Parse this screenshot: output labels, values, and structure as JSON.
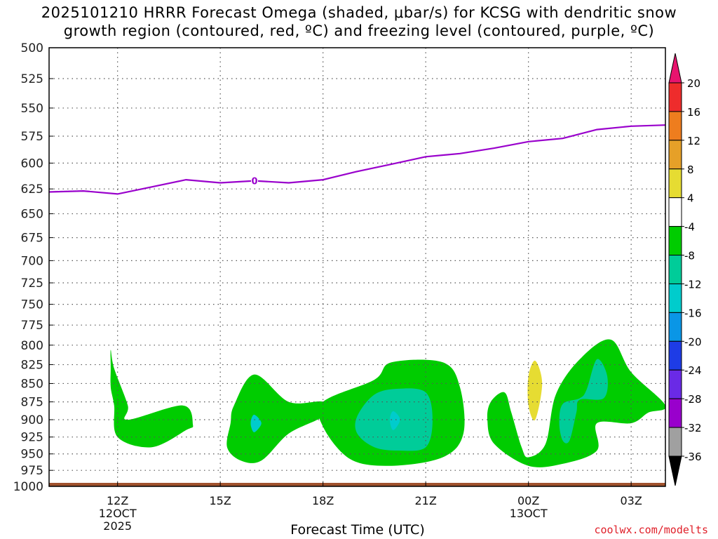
{
  "title_line1": "2025101210 HRRR Forecast Omega (shaded, μbar/s) for KCSG with dendritic snow",
  "title_line2": "growth region (contoured, red, ºC) and freezing level (contoured, purple, ºC)",
  "credit": "coolwx.com/modelts",
  "chart_data": {
    "type": "contour",
    "xlabel": "Forecast Time (UTC)",
    "ylabel": "",
    "x_range_hours": [
      10,
      28
    ],
    "y_range_hpa": [
      500,
      1000
    ],
    "y_scale": "log-pressure",
    "grid": true,
    "x_ticks": [
      {
        "hour": 12,
        "label": "12Z",
        "sub1": "12OCT",
        "sub2": "2025"
      },
      {
        "hour": 15,
        "label": "15Z",
        "sub1": "",
        "sub2": ""
      },
      {
        "hour": 18,
        "label": "18Z",
        "sub1": "",
        "sub2": ""
      },
      {
        "hour": 21,
        "label": "21Z",
        "sub1": "",
        "sub2": ""
      },
      {
        "hour": 24,
        "label": "00Z",
        "sub1": "13OCT",
        "sub2": ""
      },
      {
        "hour": 27,
        "label": "03Z",
        "sub1": "",
        "sub2": ""
      }
    ],
    "y_ticks": [
      500,
      525,
      550,
      575,
      600,
      625,
      650,
      675,
      700,
      725,
      750,
      775,
      800,
      825,
      850,
      875,
      900,
      925,
      950,
      975,
      1000
    ],
    "freezing_level": {
      "label": "0",
      "color": "#9900cc",
      "points": [
        [
          10,
          628
        ],
        [
          11,
          627
        ],
        [
          12,
          630
        ],
        [
          13,
          623
        ],
        [
          14,
          616
        ],
        [
          15,
          619
        ],
        [
          16,
          617
        ],
        [
          17,
          619
        ],
        [
          18,
          616
        ],
        [
          19,
          608
        ],
        [
          20,
          601
        ],
        [
          21,
          594
        ],
        [
          22,
          591
        ],
        [
          23,
          586
        ],
        [
          24,
          580
        ],
        [
          25,
          577
        ],
        [
          26,
          569
        ],
        [
          27,
          566
        ],
        [
          28,
          565
        ]
      ]
    },
    "omega_regions": [
      {
        "level": -4,
        "color": "#00cc00",
        "points": [
          [
            11.8,
            806
          ],
          [
            11.9,
            830
          ],
          [
            12.3,
            880
          ],
          [
            12.3,
            900
          ],
          [
            13.9,
            880
          ],
          [
            14.2,
            907
          ],
          [
            14.0,
            915
          ],
          [
            13.0,
            940
          ],
          [
            12.0,
            925
          ],
          [
            11.9,
            880
          ],
          [
            11.8,
            855
          ],
          [
            11.8,
            830
          ]
        ]
      },
      {
        "level": -4,
        "color": "#00cc00",
        "points": [
          [
            15.4,
            880
          ],
          [
            16.0,
            838
          ],
          [
            17.0,
            875
          ],
          [
            18.0,
            875
          ],
          [
            18.0,
            895
          ],
          [
            17.0,
            920
          ],
          [
            16.2,
            960
          ],
          [
            15.6,
            960
          ],
          [
            15.2,
            940
          ],
          [
            15.3,
            905
          ]
        ]
      },
      {
        "level": -4,
        "color": "#00cc00",
        "points": [
          [
            18.0,
            875
          ],
          [
            19.5,
            845
          ],
          [
            20.0,
            822
          ],
          [
            21.5,
            822
          ],
          [
            22.0,
            855
          ],
          [
            22.1,
            920
          ],
          [
            21.5,
            955
          ],
          [
            20.0,
            968
          ],
          [
            18.8,
            958
          ],
          [
            18.0,
            910
          ]
        ]
      },
      {
        "level": -4,
        "color": "#00cc00",
        "points": [
          [
            22.9,
            875
          ],
          [
            23.3,
            862
          ],
          [
            23.5,
            890
          ],
          [
            23.8,
            940
          ],
          [
            24.0,
            955
          ],
          [
            24.5,
            935
          ],
          [
            24.8,
            865
          ],
          [
            25.5,
            818
          ],
          [
            26.4,
            793
          ],
          [
            27.0,
            835
          ],
          [
            28.0,
            880
          ],
          [
            27.5,
            890
          ],
          [
            27.0,
            905
          ],
          [
            26.0,
            905
          ],
          [
            26.0,
            945
          ],
          [
            25.0,
            965
          ],
          [
            24.0,
            968
          ],
          [
            23.0,
            935
          ],
          [
            22.8,
            900
          ]
        ]
      },
      {
        "level": -8,
        "color": "#00cc99",
        "points": [
          [
            19.0,
            895
          ],
          [
            19.5,
            865
          ],
          [
            20.2,
            857
          ],
          [
            21.0,
            862
          ],
          [
            21.2,
            900
          ],
          [
            21.0,
            940
          ],
          [
            20.2,
            945
          ],
          [
            19.5,
            940
          ],
          [
            19.0,
            920
          ]
        ]
      },
      {
        "level": -8,
        "color": "#00cc99",
        "points": [
          [
            25.0,
            878
          ],
          [
            25.5,
            870
          ],
          [
            25.7,
            858
          ],
          [
            26.0,
            818
          ],
          [
            26.3,
            840
          ],
          [
            26.2,
            870
          ],
          [
            25.5,
            872
          ],
          [
            25.4,
            890
          ],
          [
            25.2,
            930
          ],
          [
            25.0,
            930
          ],
          [
            24.9,
            905
          ]
        ]
      },
      {
        "level": -12,
        "color": "#00cccc",
        "points": [
          [
            15.9,
            900
          ],
          [
            16.0,
            893
          ],
          [
            16.2,
            905
          ],
          [
            16.0,
            918
          ],
          [
            15.9,
            910
          ]
        ]
      },
      {
        "level": -12,
        "color": "#00cccc",
        "points": [
          [
            19.95,
            900
          ],
          [
            20.05,
            888
          ],
          [
            20.25,
            900
          ],
          [
            20.05,
            915
          ]
        ]
      },
      {
        "level": 4,
        "color": "#e6dc32",
        "points": [
          [
            24.0,
            840
          ],
          [
            24.2,
            820
          ],
          [
            24.4,
            850
          ],
          [
            24.2,
            900
          ],
          [
            24.0,
            880
          ]
        ]
      }
    ],
    "colorbar": {
      "labels": [
        "20",
        "16",
        "12",
        "8",
        "4",
        "-4",
        "-8",
        "-12",
        "-16",
        "-20",
        "-24",
        "-28",
        "-32",
        "-36"
      ],
      "colors": [
        "#e8146e",
        "#ee2c2c",
        "#ee7d1e",
        "#e6a028",
        "#e6dc32",
        "#ffffff",
        "#00cc00",
        "#00cc99",
        "#00cccc",
        "#0a96e6",
        "#1e3ce6",
        "#6a2ae6",
        "#9900cc",
        "#a0a0a0",
        "#000000"
      ]
    },
    "ground_color": "#a0522d"
  }
}
